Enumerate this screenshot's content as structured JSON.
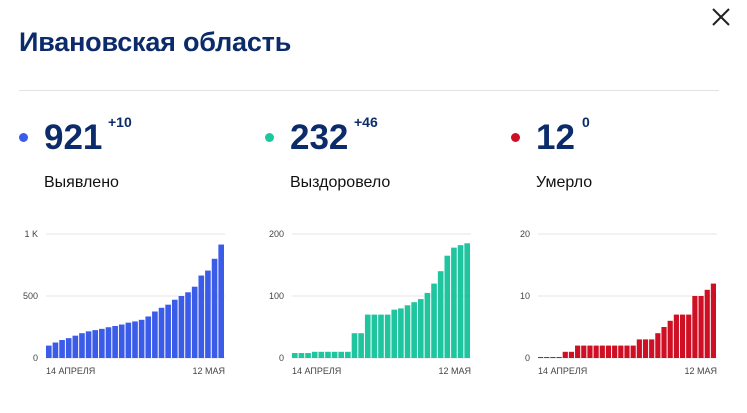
{
  "header": {
    "title": "Ивановская область"
  },
  "icons": {
    "close": "close-icon"
  },
  "stats": [
    {
      "key": "cases",
      "value": "921",
      "delta": "+10",
      "label": "Выявлено",
      "color": "#3b5ce9"
    },
    {
      "key": "recovered",
      "value": "232",
      "delta": "+46",
      "label": "Выздоровело",
      "color": "#1fc59f"
    },
    {
      "key": "deaths",
      "value": "12",
      "delta": "0",
      "label": "Умерло",
      "color": "#cf0f23"
    }
  ],
  "chart_data": [
    {
      "type": "bar",
      "series": [
        {
          "values": [
            100,
            125,
            145,
            160,
            180,
            200,
            215,
            225,
            235,
            248,
            258,
            270,
            285,
            295,
            308,
            335,
            375,
            405,
            430,
            470,
            500,
            530,
            575,
            665,
            705,
            800,
            915
          ]
        }
      ],
      "x_tick_labels": [
        "14 АПРЕЛЯ",
        "12 МАЯ"
      ],
      "y_tick_labels": [
        "0",
        "500",
        "1 K"
      ],
      "y_tick_values": [
        0,
        500,
        1000
      ],
      "ylim": [
        0,
        1000
      ],
      "color": "#3b5ce9",
      "grid": true
    },
    {
      "type": "bar",
      "series": [
        {
          "values": [
            8,
            8,
            8,
            10,
            10,
            10,
            10,
            10,
            10,
            40,
            40,
            70,
            70,
            70,
            70,
            78,
            80,
            85,
            90,
            95,
            105,
            120,
            140,
            165,
            178,
            182,
            185
          ]
        }
      ],
      "x_tick_labels": [
        "14 АПРЕЛЯ",
        "12 МАЯ"
      ],
      "y_tick_labels": [
        "0",
        "100",
        "200"
      ],
      "y_tick_values": [
        0,
        100,
        200
      ],
      "ylim": [
        0,
        200
      ],
      "color": "#1fc59f",
      "grid": true
    },
    {
      "type": "bar",
      "series": [
        {
          "values": [
            0,
            0,
            0,
            0,
            1,
            1,
            2,
            2,
            2,
            2,
            2,
            2,
            2,
            2,
            2,
            2,
            3,
            3,
            3,
            4,
            5,
            6,
            7,
            7,
            7,
            10,
            10,
            11,
            12
          ]
        }
      ],
      "x_tick_labels": [
        "14 АПРЕЛЯ",
        "12 МАЯ"
      ],
      "y_tick_labels": [
        "0",
        "10",
        "20"
      ],
      "y_tick_values": [
        0,
        10,
        20
      ],
      "ylim": [
        0,
        20
      ],
      "color": "#cf0f23",
      "grid": true
    }
  ]
}
